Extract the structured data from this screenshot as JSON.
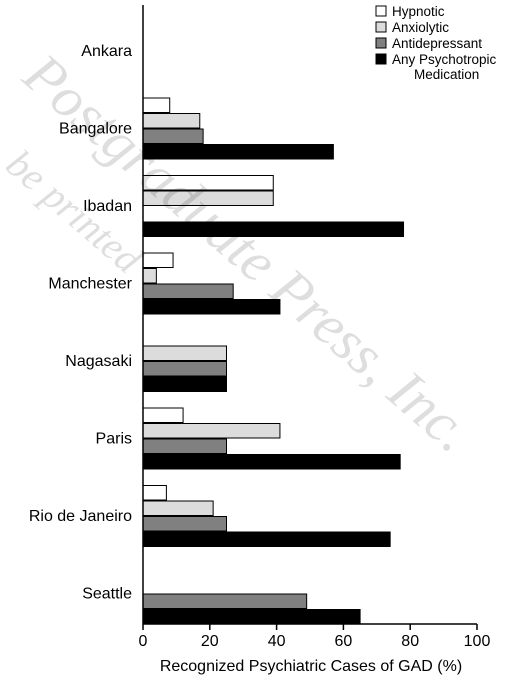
{
  "chart_data": {
    "type": "bar",
    "orientation": "horizontal",
    "categories": [
      "Ankara",
      "Bangalore",
      "Ibadan",
      "Manchester",
      "Nagasaki",
      "Paris",
      "Rio de Janeiro",
      "Seattle"
    ],
    "series": [
      {
        "name": "Hypnotic",
        "color": "#ffffff",
        "values": [
          0,
          8,
          39,
          9,
          0,
          12,
          7,
          0
        ]
      },
      {
        "name": "Anxiolytic",
        "color": "#dcdcdc",
        "values": [
          0,
          17,
          39,
          4,
          25,
          41,
          21,
          0
        ]
      },
      {
        "name": "Antidepressant",
        "color": "#808080",
        "values": [
          0,
          18,
          0,
          27,
          25,
          25,
          25,
          49
        ]
      },
      {
        "name": "Any Psychotropic Medication",
        "color": "#000000",
        "values": [
          0,
          57,
          78,
          41,
          25,
          77,
          74,
          65
        ]
      }
    ],
    "legend_lines": [
      [
        "Hypnotic"
      ],
      [
        "Anxiolytic"
      ],
      [
        "Antidepressant"
      ],
      [
        "Any Psychotropic",
        "Medication"
      ]
    ],
    "xlabel": "Recognized Psychiatric Cases of GAD (%)",
    "ylabel": "",
    "xlim": [
      0,
      100
    ],
    "xticks": [
      0,
      20,
      40,
      60,
      80,
      100
    ],
    "grid": false,
    "legend_position": "top-right"
  },
  "watermark": {
    "line1": "Postgraduate Press, Inc.",
    "line2": "be printed"
  }
}
